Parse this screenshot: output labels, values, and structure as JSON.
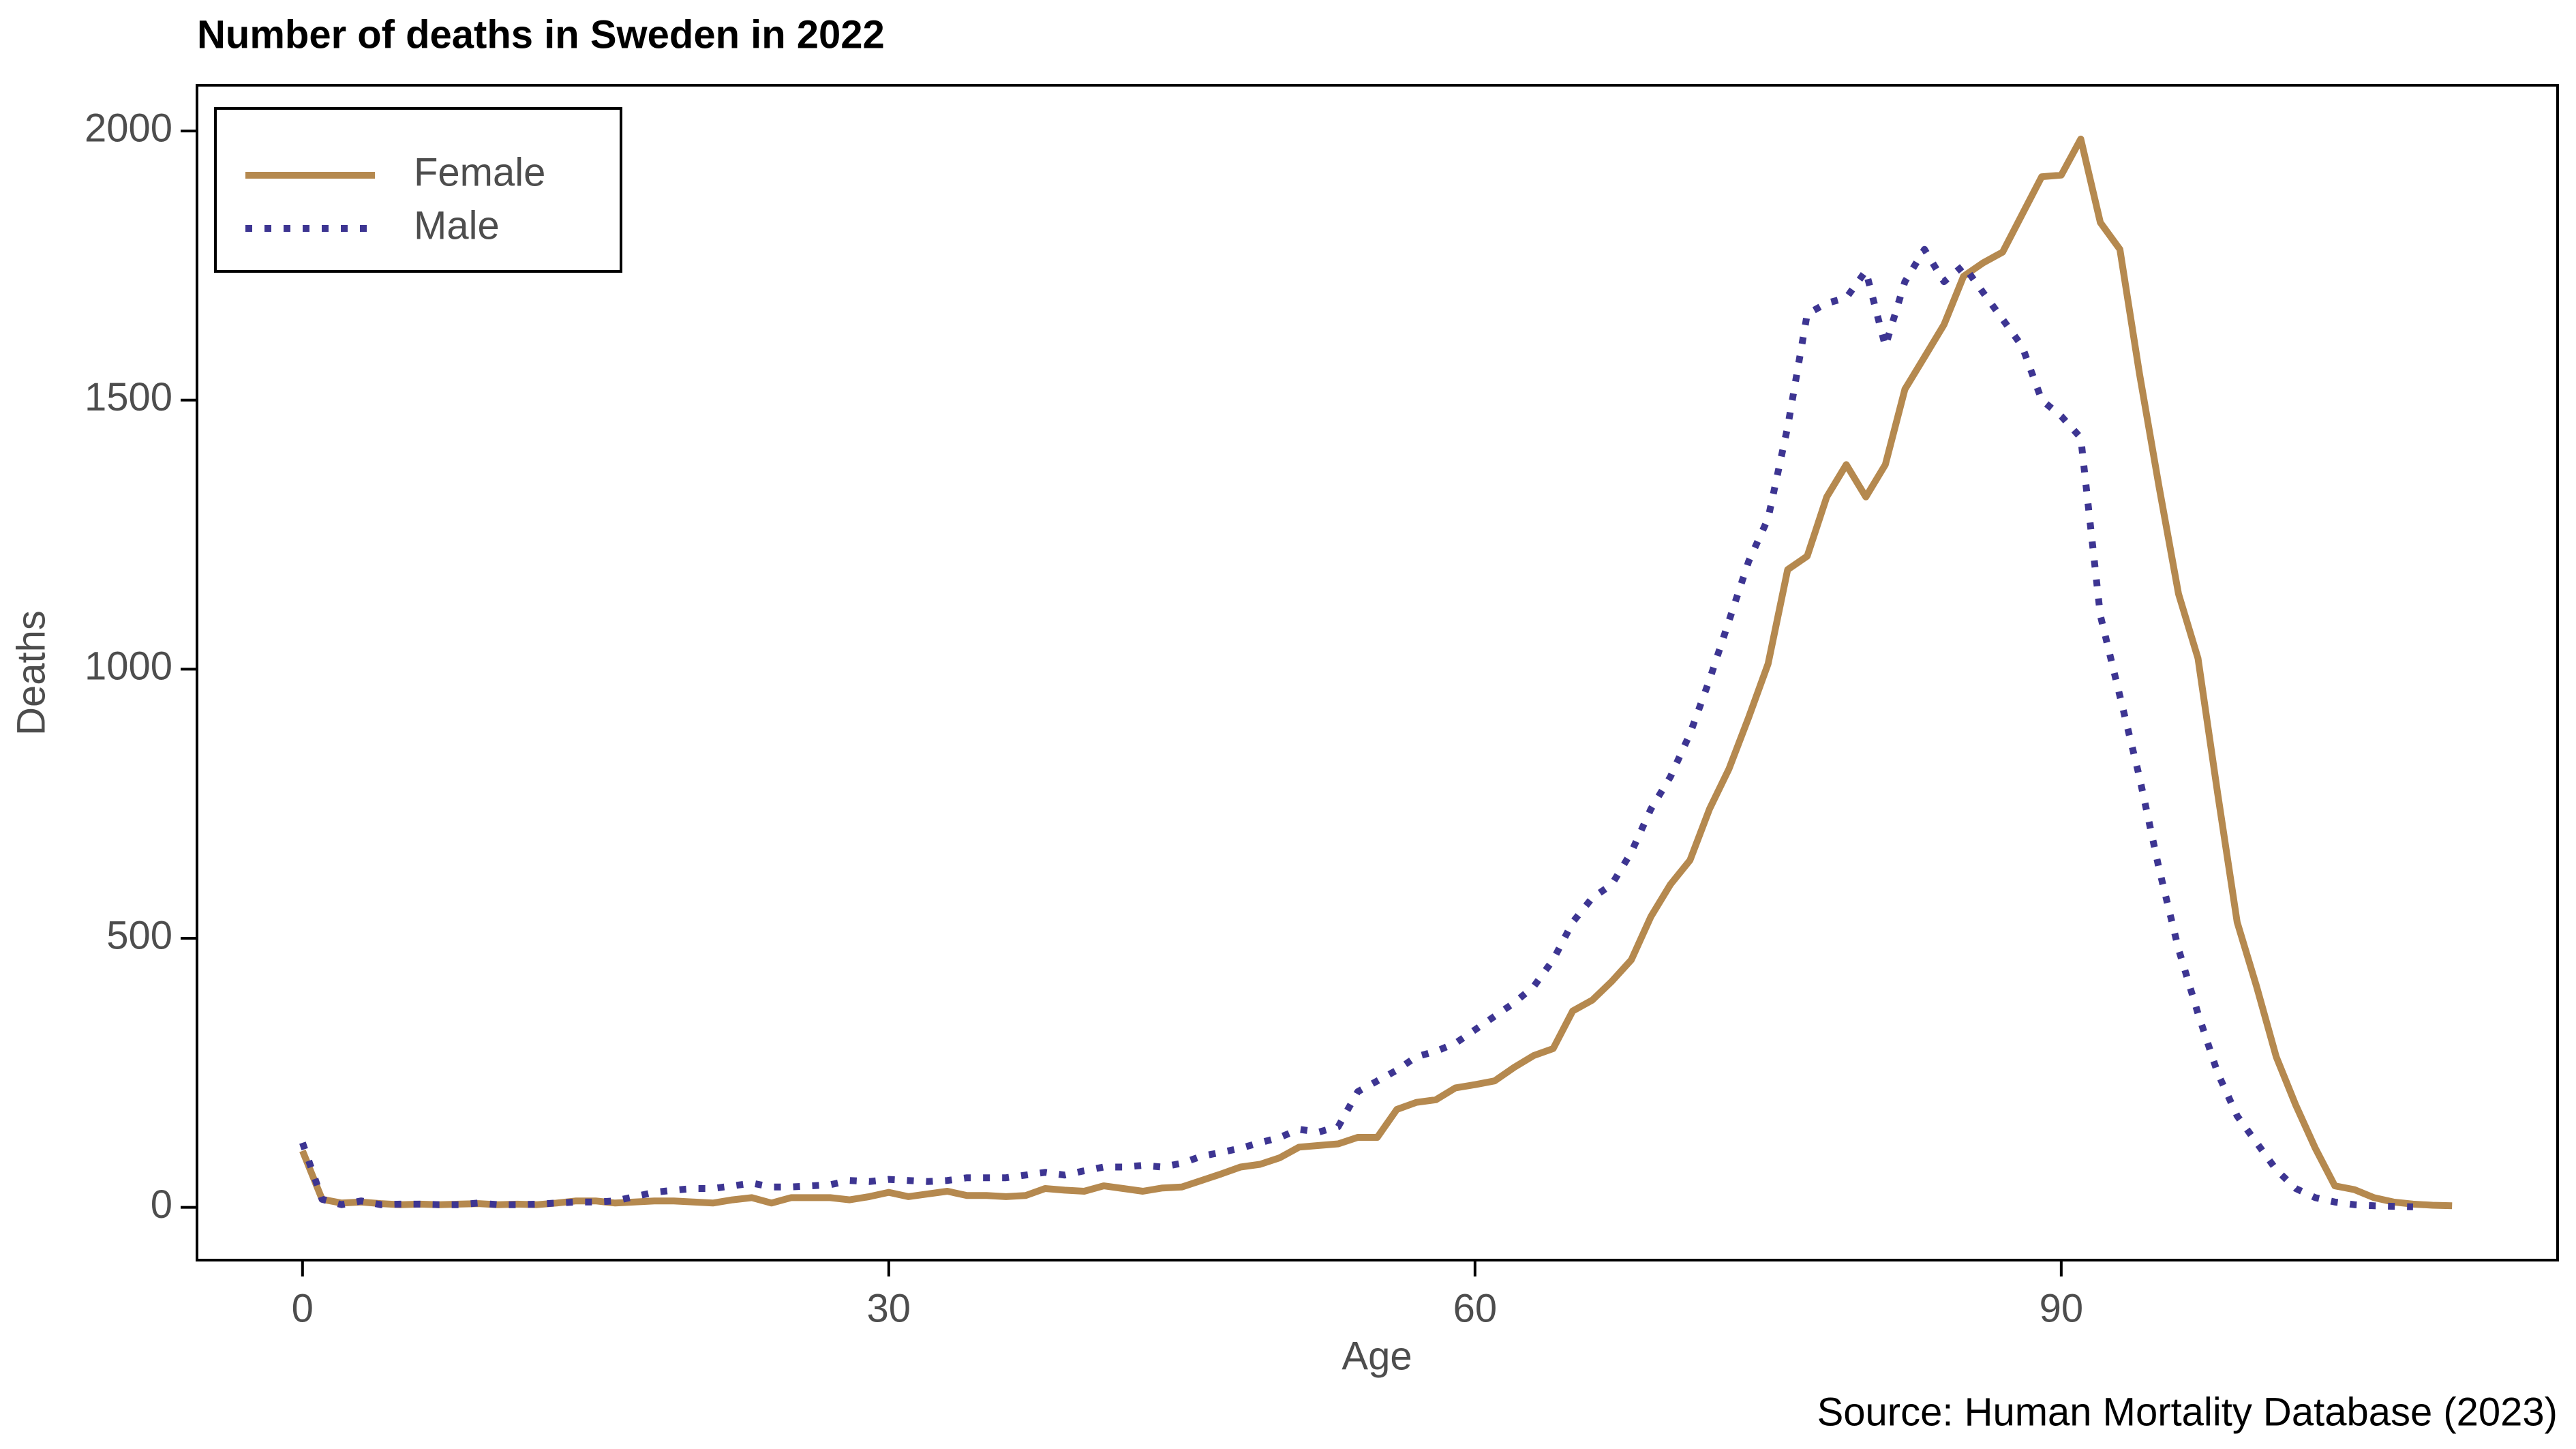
{
  "chart_data": {
    "type": "line",
    "title": "Number of deaths in Sweden in 2022",
    "xlabel": "Age",
    "ylabel": "Deaths",
    "source": "Source: Human Mortality Database (2023)",
    "x": [
      0,
      1,
      2,
      3,
      4,
      5,
      6,
      7,
      8,
      9,
      10,
      11,
      12,
      13,
      14,
      15,
      16,
      17,
      18,
      19,
      20,
      21,
      22,
      23,
      24,
      25,
      26,
      27,
      28,
      29,
      30,
      31,
      32,
      33,
      34,
      35,
      36,
      37,
      38,
      39,
      40,
      41,
      42,
      43,
      44,
      45,
      46,
      47,
      48,
      49,
      50,
      51,
      52,
      53,
      54,
      55,
      56,
      57,
      58,
      59,
      60,
      61,
      62,
      63,
      64,
      65,
      66,
      67,
      68,
      69,
      70,
      71,
      72,
      73,
      74,
      75,
      76,
      77,
      78,
      79,
      80,
      81,
      82,
      83,
      84,
      85,
      86,
      87,
      88,
      89,
      90,
      91,
      92,
      93,
      94,
      95,
      96,
      97,
      98,
      99,
      100,
      101,
      102,
      103,
      104,
      105,
      106,
      107,
      108,
      109,
      110
    ],
    "series": [
      {
        "name": "Female",
        "color": "#b5894f",
        "style": "solid",
        "values": [
          105,
          15,
          8,
          10,
          7,
          5,
          6,
          5,
          6,
          7,
          5,
          6,
          5,
          8,
          12,
          12,
          8,
          10,
          12,
          12,
          10,
          8,
          14,
          18,
          8,
          18,
          18,
          18,
          14,
          20,
          28,
          20,
          25,
          30,
          22,
          22,
          20,
          22,
          35,
          32,
          30,
          40,
          35,
          30,
          36,
          38,
          50,
          62,
          75,
          80,
          92,
          112,
          115,
          118,
          130,
          130,
          182,
          195,
          200,
          222,
          228,
          235,
          260,
          282,
          295,
          365,
          385,
          420,
          460,
          540,
          600,
          645,
          740,
          815,
          910,
          1010,
          1185,
          1210,
          1320,
          1380,
          1320,
          1380,
          1520,
          1580,
          1640,
          1730,
          1755,
          1775,
          1845,
          1915,
          1918,
          1985,
          1830,
          1780,
          1550,
          1340,
          1140,
          1020,
          770,
          530,
          410,
          280,
          190,
          110,
          40,
          33,
          18,
          10,
          6,
          4,
          3
        ]
      },
      {
        "name": "Male",
        "color": "#3d3592",
        "style": "dotted",
        "values": [
          120,
          15,
          5,
          12,
          5,
          6,
          6,
          5,
          5,
          8,
          5,
          5,
          6,
          8,
          10,
          10,
          12,
          20,
          28,
          32,
          35,
          35,
          40,
          45,
          38,
          38,
          40,
          42,
          50,
          48,
          52,
          50,
          48,
          50,
          55,
          55,
          55,
          60,
          65,
          60,
          68,
          75,
          75,
          78,
          75,
          82,
          95,
          102,
          110,
          120,
          130,
          145,
          140,
          150,
          215,
          235,
          255,
          280,
          290,
          305,
          330,
          355,
          380,
          410,
          460,
          530,
          575,
          600,
          660,
          740,
          800,
          880,
          980,
          1090,
          1200,
          1280,
          1450,
          1660,
          1680,
          1690,
          1740,
          1600,
          1720,
          1780,
          1720,
          1750,
          1700,
          1650,
          1600,
          1500,
          1470,
          1430,
          1100,
          950,
          800,
          630,
          480,
          360,
          250,
          170,
          120,
          70,
          35,
          18,
          10,
          5,
          3,
          2,
          1,
          null,
          null
        ]
      }
    ],
    "xlim": [
      -5.4,
      115.4
    ],
    "ylim": [
      -98,
      2085
    ],
    "xticks": [
      0,
      30,
      60,
      90
    ],
    "yticks": [
      0,
      500,
      1000,
      1500,
      2000
    ],
    "legend": "upper left",
    "grid": false
  }
}
